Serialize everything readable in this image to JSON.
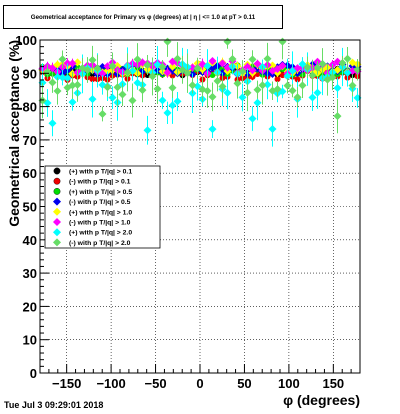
{
  "title": "Geometrical acceptance for Primary vs φ (degrees) at | η | <= 1.0 at pT > 0.11",
  "timestamp": "Tue Jul  3 09:29:01 2018",
  "chart_data": {
    "type": "scatter",
    "xlabel": "φ (degrees)",
    "ylabel": "Geometrical acceptance (%)",
    "xlim": [
      -180,
      180
    ],
    "ylim": [
      0,
      100
    ],
    "x_ticks": [
      -150,
      -100,
      -50,
      0,
      50,
      100,
      150
    ],
    "x_tick_labels": [
      "−150",
      "−100",
      "−50",
      "0",
      "50",
      "100",
      "150"
    ],
    "y_ticks": [
      0,
      10,
      20,
      30,
      40,
      50,
      60,
      70,
      80,
      90,
      100
    ],
    "y_tick_labels": [
      "0",
      "10",
      "20",
      "30",
      "40",
      "50",
      "60",
      "70",
      "80",
      "90",
      "100"
    ],
    "grid": true,
    "legend_placement": "middle-left",
    "series": [
      {
        "name": "(+) with p T/|q| > 0.1",
        "color": "#000000",
        "marker": "circle",
        "level": 90.5,
        "spread": 1.2,
        "err": 0.6
      },
      {
        "name": "(-) with p T/|q| > 0.1",
        "color": "#ee0000",
        "marker": "circle",
        "level": 89.5,
        "spread": 1.5,
        "err": 0.7
      },
      {
        "name": "(+) with p T/|q| > 0.5",
        "color": "#00dd00",
        "marker": "circle",
        "level": 91.0,
        "spread": 1.5,
        "err": 0.8
      },
      {
        "name": "(-) with p T/|q| > 0.5",
        "color": "#0000ee",
        "marker": "diamond",
        "level": 91.2,
        "spread": 1.5,
        "err": 0.8
      },
      {
        "name": "(+) with p T/|q| > 1.0",
        "color": "#ffff00",
        "marker": "diamond",
        "level": 91.5,
        "spread": 1.8,
        "err": 1.0
      },
      {
        "name": "(-) with p T/|q| > 1.0",
        "color": "#ff00ff",
        "marker": "diamond",
        "level": 91.8,
        "spread": 2.0,
        "err": 1.2
      },
      {
        "name": "(+) with p T/|q| > 2.0",
        "color": "#00ffff",
        "marker": "diamond",
        "level": 87.0,
        "spread": 6.0,
        "err": 4.0
      },
      {
        "name": "(-) with p T/|q| > 2.0",
        "color": "#66dd66",
        "marker": "diamond",
        "level": 89.5,
        "spread": 5.0,
        "err": 4.0
      }
    ]
  }
}
